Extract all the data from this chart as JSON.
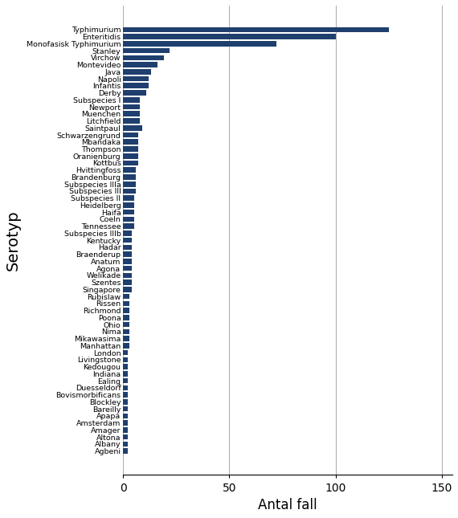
{
  "categories": [
    "Typhimurium",
    "Enteritidis",
    "Monofasisk Typhimurium",
    "Stanley",
    "Virchow",
    "Montevideo",
    "Java",
    "Napoli",
    "Infantis",
    "Derby",
    "Subspecies I",
    "Newport",
    "Muenchen",
    "Litchfield",
    "Saintpaul",
    "Schwarzengrund",
    "Mbandaka",
    "Thompson",
    "Oranienburg",
    "Kottbus",
    "Hvittingfoss",
    "Brandenburg",
    "Subspecies IIIa",
    "Subspecies III",
    "Subspecies II",
    "Heidelberg",
    "Haifa",
    "Coeln",
    "Tennessee",
    "Subspecies IIIb",
    "Kentucky",
    "Hadar",
    "Braenderup",
    "Anatum",
    "Agona",
    "Welikade",
    "Szentes",
    "Singapore",
    "Rubislaw",
    "Rissen",
    "Richmond",
    "Poona",
    "Ohio",
    "Nima",
    "Mikawasima",
    "Manhattan",
    "London",
    "Livingstone",
    "Kedougou",
    "Indiana",
    "Ealing",
    "Duesseldorf",
    "Bovismorbificans",
    "Blockley",
    "Bareilly",
    "Apapa",
    "Amsterdam",
    "Amager",
    "Altona",
    "Albany",
    "Agbeni"
  ],
  "values": [
    125,
    100,
    72,
    22,
    19,
    16,
    13,
    12,
    12,
    11,
    8,
    8,
    8,
    8,
    9,
    7,
    7,
    7,
    7,
    7,
    6,
    6,
    6,
    6,
    5,
    5,
    5,
    5,
    5,
    4,
    4,
    4,
    4,
    4,
    4,
    4,
    4,
    4,
    3,
    3,
    3,
    3,
    3,
    3,
    3,
    3,
    2,
    2,
    2,
    2,
    2,
    2,
    2,
    2,
    2,
    2,
    2,
    2,
    2,
    2,
    2
  ],
  "bar_color": "#1f3f6e",
  "xlabel": "Antal fall",
  "ylabel": "Serotyp",
  "xlim": [
    0,
    155
  ],
  "xticks": [
    0,
    50,
    100,
    150
  ],
  "background_color": "#ffffff",
  "grid_color": "#b0b0b0",
  "label_fontsize": 6.8,
  "xlabel_fontsize": 12,
  "ylabel_fontsize": 14,
  "xtick_fontsize": 10,
  "bar_height": 0.75
}
